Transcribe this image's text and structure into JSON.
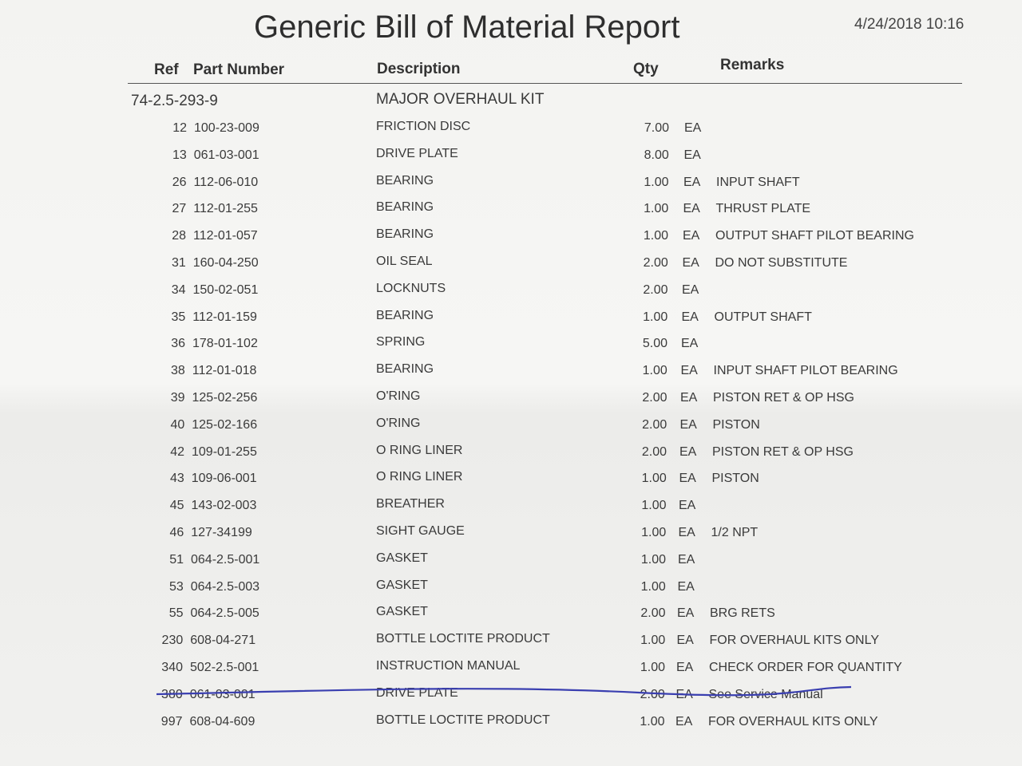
{
  "header": {
    "title": "Generic Bill of Material Report",
    "date": "4/24/2018 10:16"
  },
  "columns": {
    "ref": "Ref",
    "part": "Part Number",
    "description": "Description",
    "qty": "Qty",
    "remarks": "Remarks"
  },
  "kit": {
    "part": "74-2.5-293-9",
    "description": "MAJOR OVERHAUL KIT"
  },
  "rows": [
    {
      "ref": "12",
      "part": "100-23-009",
      "description": "FRICTION DISC",
      "qty": "7.00",
      "unit": "EA"
    },
    {
      "ref": "13",
      "part": "061-03-001",
      "description": "DRIVE PLATE",
      "qty": "8.00",
      "unit": "EA"
    },
    {
      "ref": "26",
      "part": "112-06-010",
      "description": "BEARING",
      "qty": "1.00",
      "unit": "EA",
      "remarks": "INPUT SHAFT"
    },
    {
      "ref": "27",
      "part": "112-01-255",
      "description": "BEARING",
      "qty": "1.00",
      "unit": "EA",
      "remarks": "THRUST PLATE"
    },
    {
      "ref": "28",
      "part": "112-01-057",
      "description": "BEARING",
      "qty": "1.00",
      "unit": "EA",
      "remarks": "OUTPUT SHAFT PILOT BEARING"
    },
    {
      "ref": "31",
      "part": "160-04-250",
      "description": "OIL SEAL",
      "qty": "2.00",
      "unit": "EA",
      "remarks": "DO NOT SUBSTITUTE"
    },
    {
      "ref": "34",
      "part": "150-02-051",
      "description": "LOCKNUTS",
      "qty": "2.00",
      "unit": "EA"
    },
    {
      "ref": "35",
      "part": "112-01-159",
      "description": "BEARING",
      "qty": "1.00",
      "unit": "EA",
      "remarks": "OUTPUT SHAFT"
    },
    {
      "ref": "36",
      "part": "178-01-102",
      "description": "SPRING",
      "qty": "5.00",
      "unit": "EA"
    },
    {
      "ref": "38",
      "part": "112-01-018",
      "description": "BEARING",
      "qty": "1.00",
      "unit": "EA",
      "remarks": "INPUT SHAFT PILOT BEARING"
    },
    {
      "ref": "39",
      "part": "125-02-256",
      "description": "O'RING",
      "qty": "2.00",
      "unit": "EA",
      "remarks": "PISTON RET & OP HSG"
    },
    {
      "ref": "40",
      "part": "125-02-166",
      "description": "O'RING",
      "qty": "2.00",
      "unit": "EA",
      "remarks": "PISTON"
    },
    {
      "ref": "42",
      "part": "109-01-255",
      "description": "O RING LINER",
      "qty": "2.00",
      "unit": "EA",
      "remarks": "PISTON RET & OP HSG"
    },
    {
      "ref": "43",
      "part": "109-06-001",
      "description": "O RING LINER",
      "qty": "1.00",
      "unit": "EA",
      "remarks": "PISTON"
    },
    {
      "ref": "45",
      "part": "143-02-003",
      "description": "BREATHER",
      "qty": "1.00",
      "unit": "EA"
    },
    {
      "ref": "46",
      "part": "127-34199",
      "description": "SIGHT GAUGE",
      "qty": "1.00",
      "unit": "EA",
      "remarks": "1/2 NPT"
    },
    {
      "ref": "51",
      "part": "064-2.5-001",
      "description": "GASKET",
      "qty": "1.00",
      "unit": "EA"
    },
    {
      "ref": "53",
      "part": "064-2.5-003",
      "description": "GASKET",
      "qty": "1.00",
      "unit": "EA"
    },
    {
      "ref": "55",
      "part": "064-2.5-005",
      "description": "GASKET",
      "qty": "2.00",
      "unit": "EA",
      "remarks": "BRG RETS"
    },
    {
      "ref": "230",
      "part": "608-04-271",
      "description": "BOTTLE LOCTITE PRODUCT",
      "qty": "1.00",
      "unit": "EA",
      "remarks": "FOR OVERHAUL KITS ONLY"
    },
    {
      "ref": "340",
      "part": "502-2.5-001",
      "description": "INSTRUCTION MANUAL",
      "qty": "1.00",
      "unit": "EA",
      "remarks": "CHECK ORDER FOR QUANTITY"
    },
    {
      "ref": "380",
      "part": "061-03-001",
      "description": "DRIVE PLATE",
      "qty": "2.00",
      "unit": "EA",
      "remarks": "See Service Manual"
    },
    {
      "ref": "997",
      "part": "608-04-609",
      "description": "BOTTLE LOCTITE PRODUCT",
      "qty": "1.00",
      "unit": "EA",
      "remarks": "FOR OVERHAUL KITS ONLY"
    }
  ]
}
